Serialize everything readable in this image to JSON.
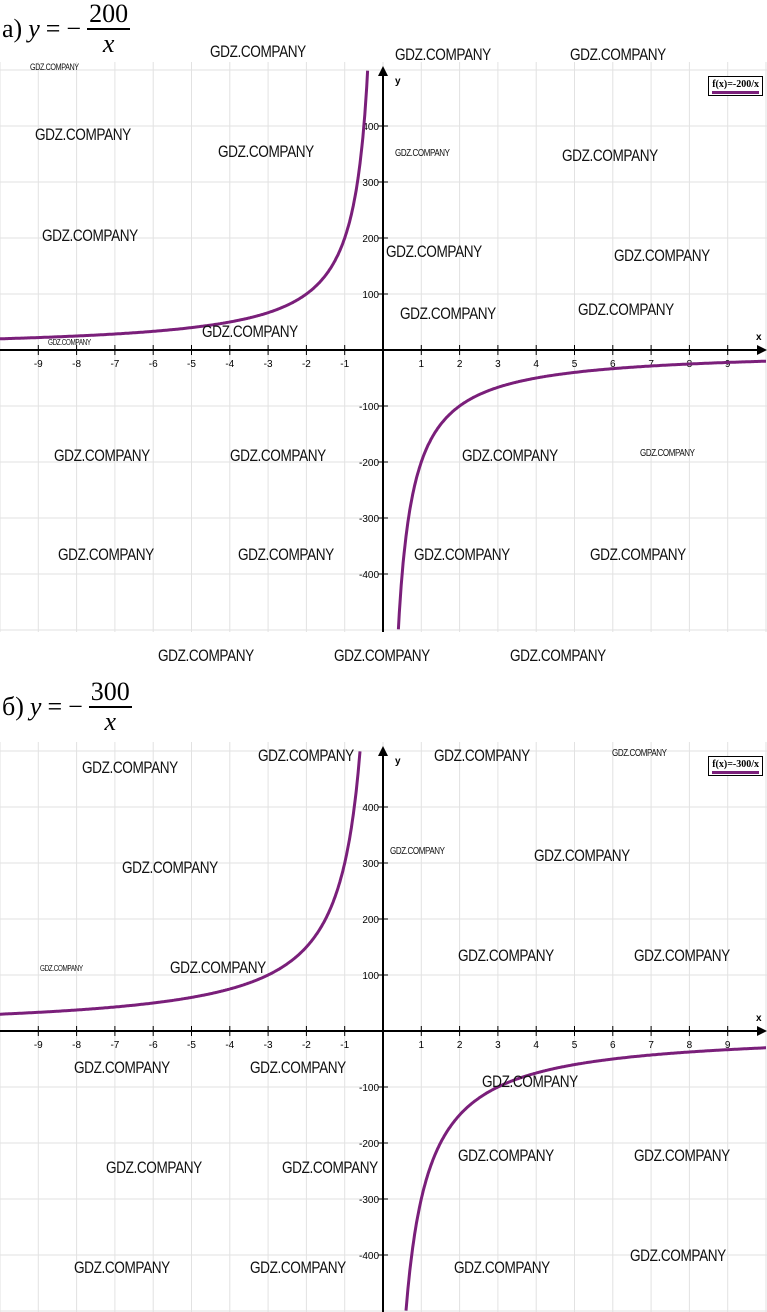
{
  "watermark": "GDZ.COMPANY",
  "chart_data": [
    {
      "type": "line",
      "label": "а)",
      "equation": {
        "lhs": "y",
        "eq": "=",
        "sign": "−",
        "numerator": "200",
        "denominator": "x"
      },
      "function": "f(x)=-200/x",
      "k": -200,
      "legend": "f(x)=-200/x",
      "legend_position": "top-right",
      "xlabel": "x",
      "ylabel": "y",
      "xlim": [
        -10,
        10
      ],
      "ylim": [
        -500,
        500
      ],
      "x_ticks": [
        "-9",
        "-8",
        "-7",
        "-6",
        "-5",
        "-4",
        "-3",
        "-2",
        "-1",
        "1",
        "2",
        "3",
        "4",
        "5",
        "6",
        "7",
        "8",
        "9"
      ],
      "y_ticks": [
        "400",
        "300",
        "200",
        "100",
        "-100",
        "-200",
        "-300",
        "-400"
      ],
      "grid": true,
      "color": "#7a1f7a"
    },
    {
      "type": "line",
      "label": "б)",
      "equation": {
        "lhs": "y",
        "eq": "=",
        "sign": "−",
        "numerator": "300",
        "denominator": "x"
      },
      "function": "f(x)=-300/x",
      "k": -300,
      "legend": "f(x)=-300/x",
      "legend_position": "top-right",
      "xlabel": "x",
      "ylabel": "y",
      "xlim": [
        -10,
        10
      ],
      "ylim": [
        -500,
        500
      ],
      "x_ticks": [
        "-9",
        "-8",
        "-7",
        "-6",
        "-5",
        "-4",
        "-3",
        "-2",
        "-1",
        "1",
        "2",
        "3",
        "4",
        "5",
        "6",
        "7",
        "8",
        "9"
      ],
      "y_ticks": [
        "400",
        "300",
        "200",
        "100",
        "-100",
        "-200",
        "-300",
        "-400"
      ],
      "grid": true,
      "color": "#7a1f7a"
    }
  ]
}
